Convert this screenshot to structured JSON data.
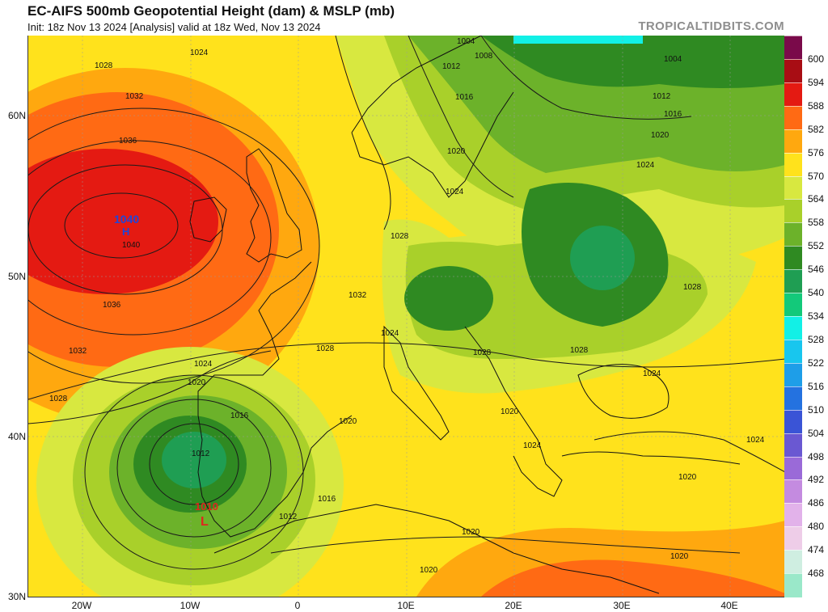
{
  "header": {
    "title": "EC-AIFS 500mb Geopotential Height (dam) & MSLP (mb)",
    "subtitle": "Init: 18z Nov 13 2024   [Analysis]   valid at 18z Wed, Nov 13 2024",
    "brand": "TROPICALTIDBITS.COM"
  },
  "colorbar": {
    "levels": [
      "600",
      "594",
      "588",
      "582",
      "576",
      "570",
      "564",
      "558",
      "552",
      "546",
      "540",
      "534",
      "528",
      "522",
      "516",
      "510",
      "504",
      "498",
      "492",
      "486",
      "480",
      "474",
      "468"
    ],
    "colors": [
      "#7a0a4a",
      "#a80d14",
      "#e41a12",
      "#ff6a14",
      "#ffa80f",
      "#ffe21c",
      "#d8e840",
      "#a9d02a",
      "#6cb22a",
      "#2f8a22",
      "#1f9e53",
      "#13c97a",
      "#12f0e6",
      "#18c6ee",
      "#1e9ee8",
      "#2472e0",
      "#3a54d6",
      "#6a58d2",
      "#9a6ad8",
      "#c48be0",
      "#e2b2ea",
      "#eecde8",
      "#cfeee1",
      "#9ae8c9"
    ]
  },
  "axes": {
    "lat_ticks": [
      "60N",
      "50N",
      "40N",
      "30N"
    ],
    "lon_ticks": [
      "20W",
      "10W",
      "0",
      "10E",
      "20E",
      "30E",
      "40E"
    ]
  },
  "pressure_centers": [
    {
      "type": "H",
      "label": "1040",
      "color": "#2046d8"
    },
    {
      "type": "L",
      "label": "1010",
      "color": "#e0261e"
    }
  ],
  "isobar_labels": [
    "1004",
    "1008",
    "1012",
    "1016",
    "1020",
    "1024",
    "1028",
    "1032",
    "1036",
    "1040"
  ],
  "colors": {
    "map_background": "#ffe34a",
    "coastline": "#111111",
    "isobar": "#1a1a1a"
  }
}
